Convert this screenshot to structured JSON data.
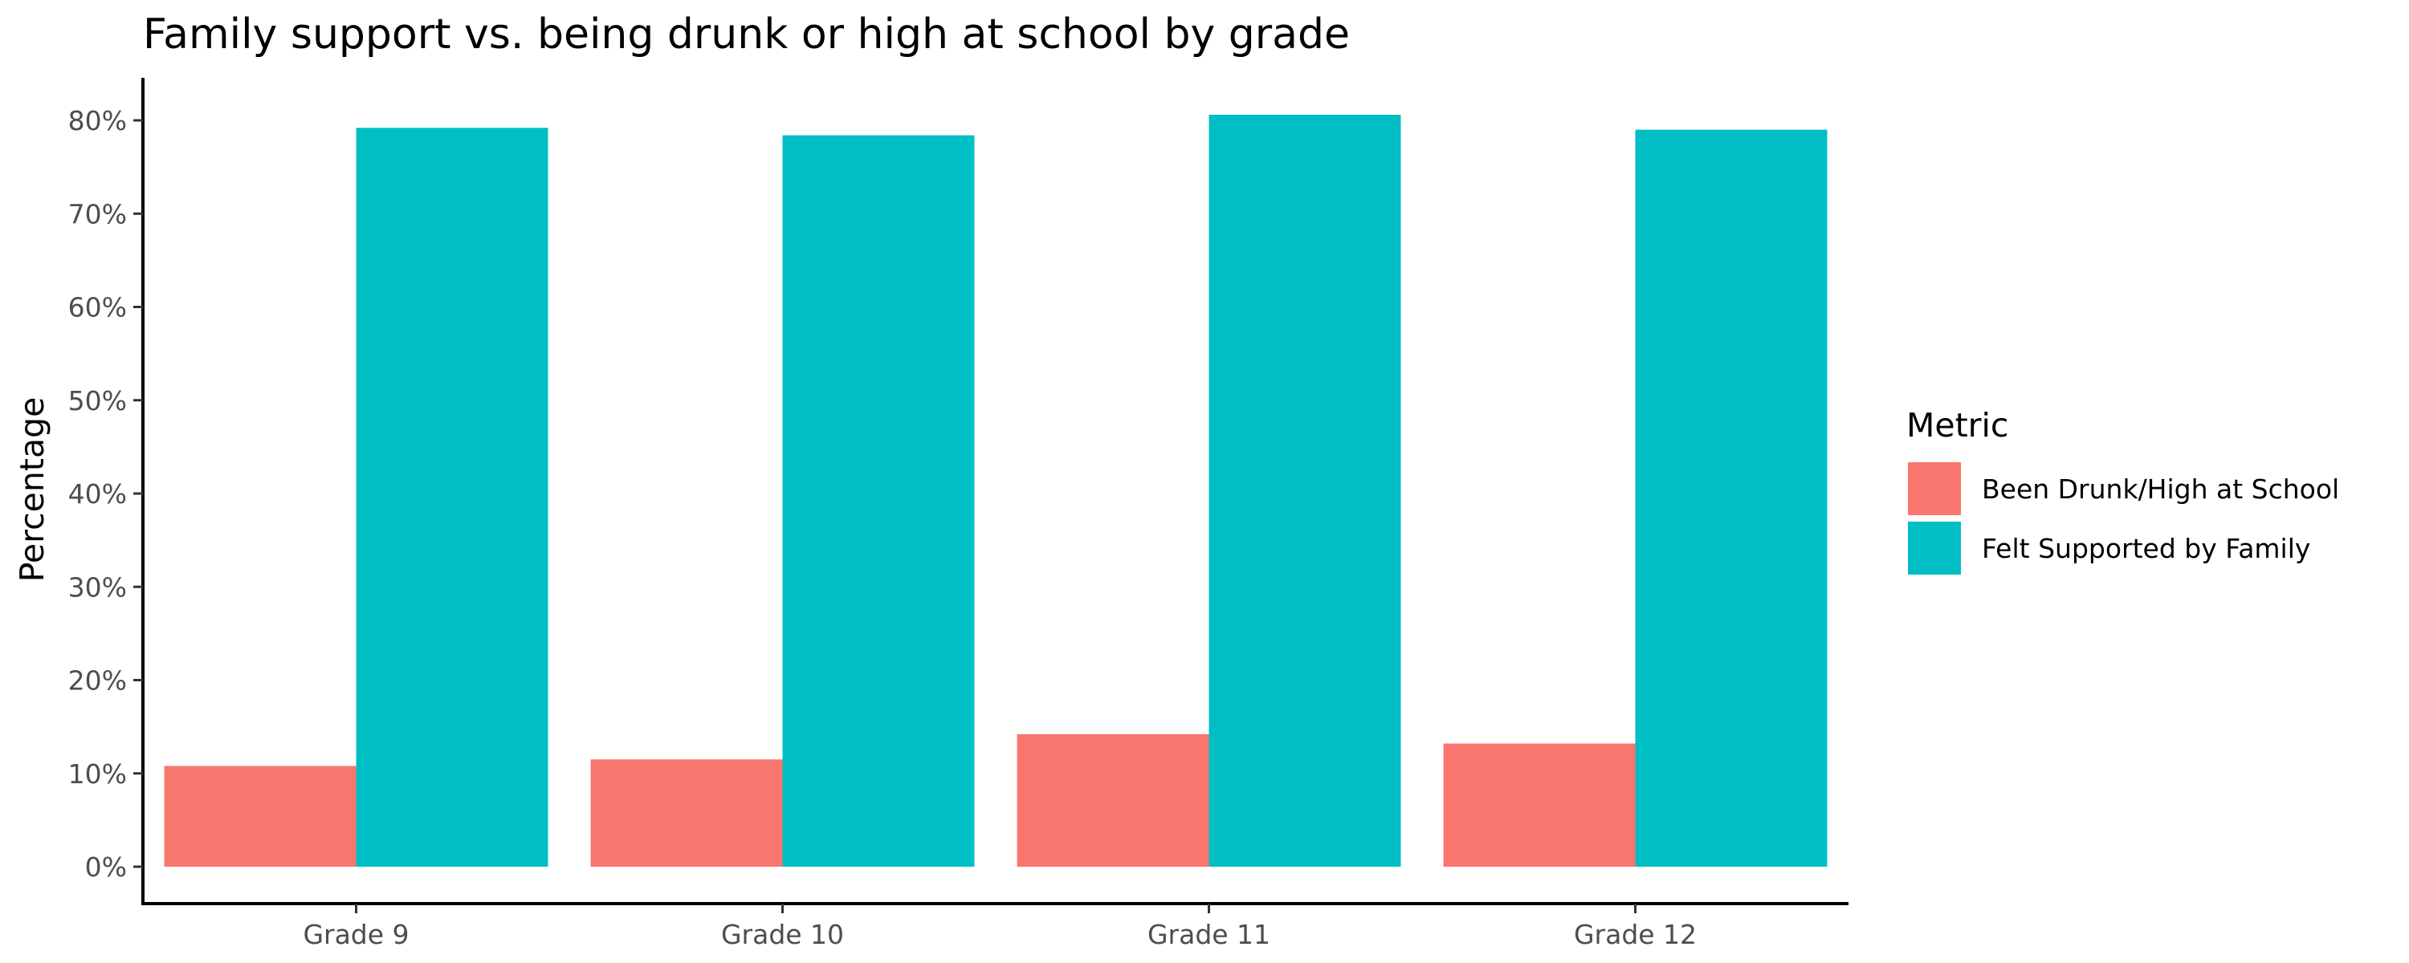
{
  "chart_data": {
    "type": "bar",
    "title": "Family support vs. being drunk or high at school by grade",
    "xlabel": "",
    "ylabel": "Percentage",
    "categories": [
      "Grade 9",
      "Grade 10",
      "Grade 11",
      "Grade 12"
    ],
    "series": [
      {
        "name": "Been Drunk/High at School",
        "color": "#F8766D",
        "values": [
          10.8,
          11.5,
          14.2,
          13.2
        ]
      },
      {
        "name": "Felt Supported by Family",
        "color": "#00BFC4",
        "values": [
          79.2,
          78.4,
          80.6,
          79.0
        ]
      }
    ],
    "ylim": [
      0,
      80
    ],
    "yticks": [
      0,
      10,
      20,
      30,
      40,
      50,
      60,
      70,
      80
    ],
    "ytick_labels": [
      "0%",
      "10%",
      "20%",
      "30%",
      "40%",
      "50%",
      "60%",
      "70%",
      "80%"
    ],
    "grid": false,
    "legend": {
      "title": "Metric",
      "position": "right"
    }
  }
}
